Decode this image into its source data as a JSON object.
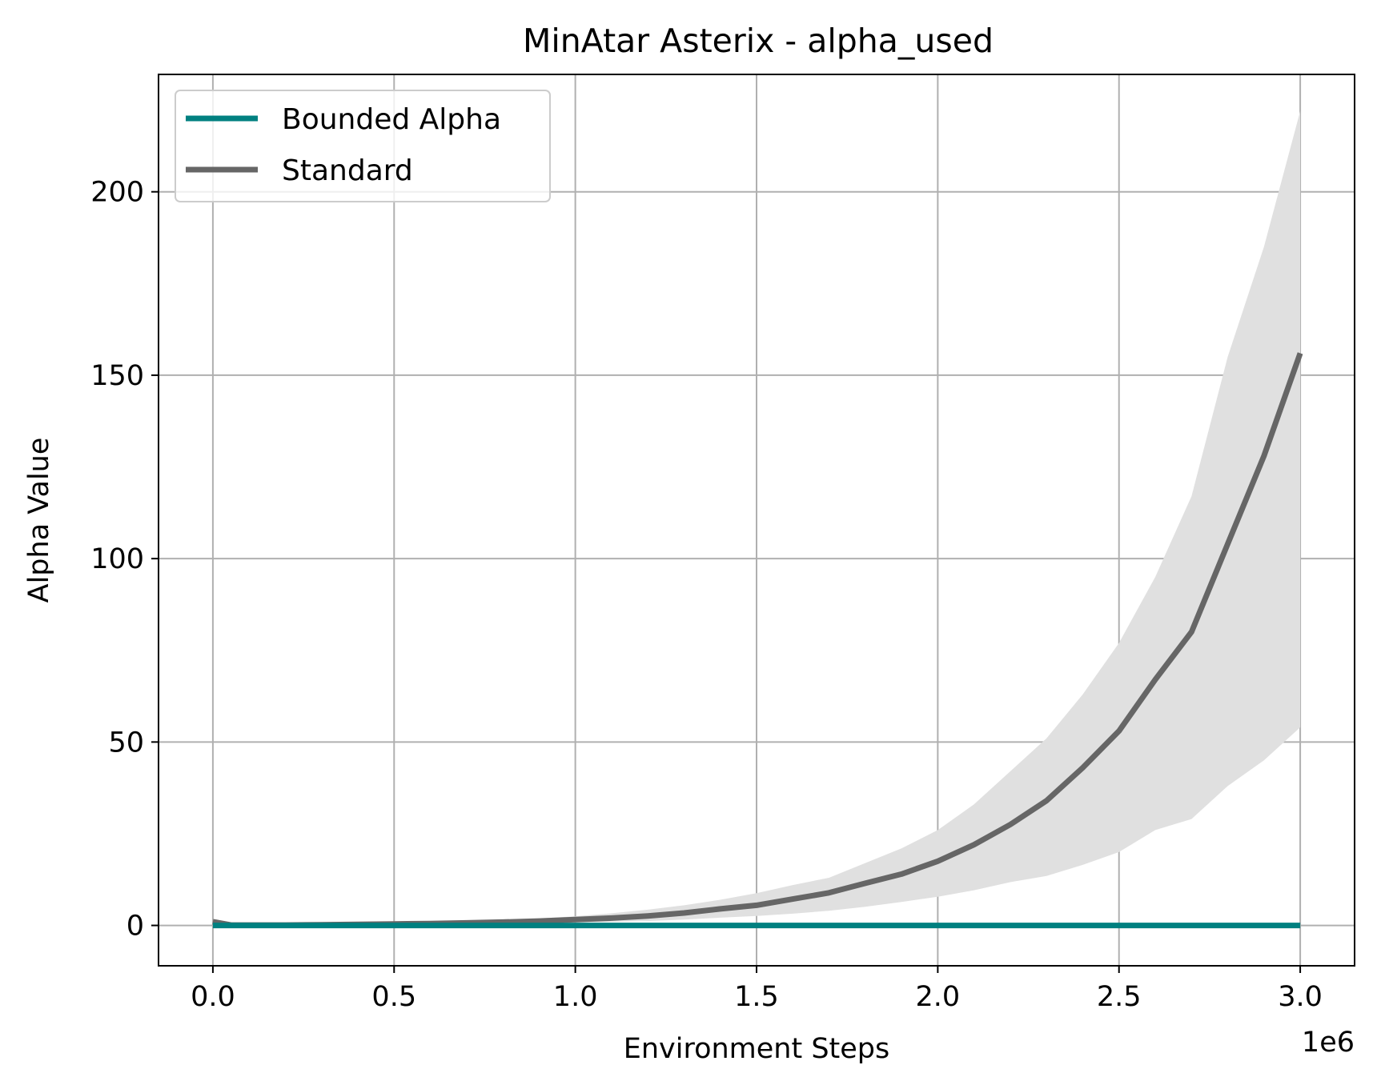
{
  "chart_data": {
    "type": "line",
    "title": "MinAtar Asterix - alpha_used",
    "xlabel": "Environment Steps",
    "ylabel": "Alpha Value",
    "x_offset_label": "1e6",
    "xlim": [
      -150000,
      3150000
    ],
    "ylim": [
      -11,
      232
    ],
    "x_ticks": [
      0,
      500000,
      1000000,
      1500000,
      2000000,
      2500000,
      3000000
    ],
    "x_tick_labels": [
      "0.0",
      "0.5",
      "1.0",
      "1.5",
      "2.0",
      "2.5",
      "3.0"
    ],
    "y_ticks": [
      0,
      50,
      100,
      150,
      200
    ],
    "y_tick_labels": [
      "0",
      "50",
      "100",
      "150",
      "200"
    ],
    "grid": true,
    "legend_position": "upper-left",
    "series": [
      {
        "name": "Bounded Alpha",
        "color": "#008080",
        "x": [
          0,
          500000,
          1000000,
          1500000,
          2000000,
          2500000,
          3000000
        ],
        "y": [
          0,
          0,
          0,
          0,
          0,
          0,
          0
        ]
      },
      {
        "name": "Standard",
        "color": "#666666",
        "band_color": "#e0e0e0",
        "x": [
          0,
          50000,
          100000,
          200000,
          300000,
          400000,
          500000,
          600000,
          700000,
          800000,
          900000,
          1000000,
          1100000,
          1200000,
          1300000,
          1400000,
          1500000,
          1600000,
          1700000,
          1800000,
          1900000,
          2000000,
          2100000,
          2200000,
          2300000,
          2400000,
          2500000,
          2600000,
          2700000,
          2800000,
          2900000,
          3000000
        ],
        "y": [
          1,
          0.1,
          0.1,
          0.1,
          0.2,
          0.3,
          0.4,
          0.5,
          0.7,
          0.9,
          1.2,
          1.6,
          2.0,
          2.6,
          3.4,
          4.5,
          5.5,
          7.2,
          8.9,
          11.5,
          14,
          17.5,
          22,
          27.5,
          34,
          43,
          53,
          67,
          80,
          104,
          128,
          156
        ],
        "lower": [
          1,
          0.1,
          0.1,
          0.1,
          0.1,
          0.2,
          0.2,
          0.3,
          0.4,
          0.5,
          0.6,
          0.8,
          1.0,
          1.2,
          1.6,
          2.1,
          2.6,
          3.2,
          4.0,
          5.1,
          6.4,
          7.8,
          9.6,
          11.8,
          13.5,
          16.5,
          20,
          26,
          29,
          38,
          45,
          54
        ],
        "upper": [
          1,
          0.1,
          0.1,
          0.2,
          0.3,
          0.4,
          0.6,
          0.8,
          1.0,
          1.4,
          1.9,
          2.5,
          3.3,
          4.3,
          5.5,
          7.0,
          8.8,
          11,
          13,
          17,
          21,
          26,
          33,
          42,
          51,
          63,
          77,
          95,
          117,
          155,
          185,
          222
        ]
      }
    ]
  }
}
